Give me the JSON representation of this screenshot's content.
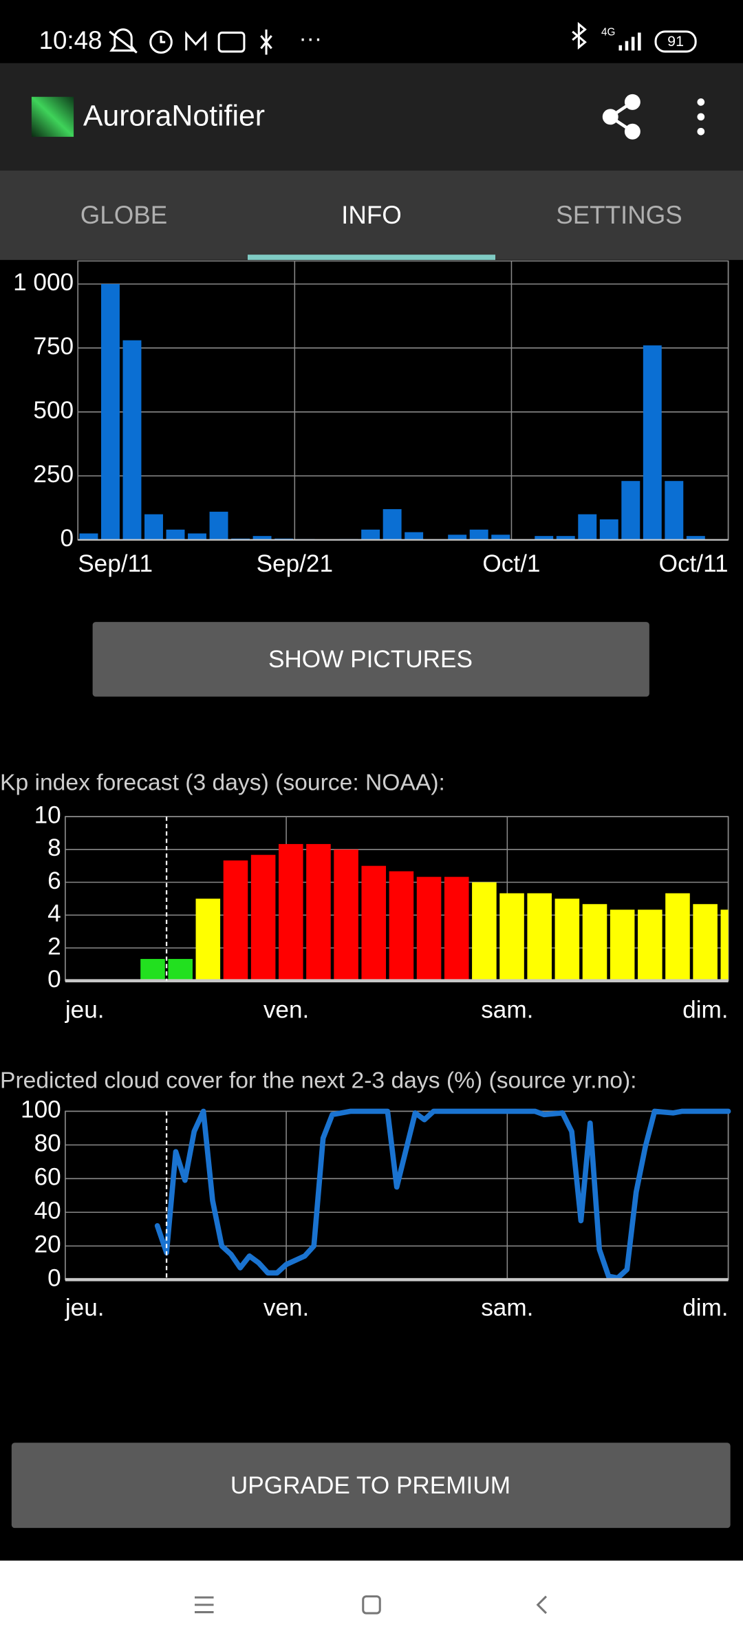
{
  "status_bar": {
    "time": "10:48",
    "network": "4G",
    "battery": "91"
  },
  "app_bar": {
    "title": "AuroraNotifier"
  },
  "tabs": [
    {
      "label": "GLOBE",
      "selected": false
    },
    {
      "label": "INFO",
      "selected": true
    },
    {
      "label": "SETTINGS",
      "selected": false
    }
  ],
  "charts": [
    {
      "type": "bar",
      "color": "#0b6fd3",
      "x": [
        0,
        1,
        2,
        3,
        4,
        5,
        6,
        7,
        8,
        9,
        10,
        11,
        12,
        13,
        14,
        15,
        16,
        17,
        18,
        19,
        20,
        21,
        22,
        23,
        24,
        25,
        26,
        27,
        28,
        29
      ],
      "values": [
        25,
        1000,
        780,
        100,
        40,
        25,
        110,
        5,
        15,
        5,
        3,
        2,
        3,
        40,
        120,
        30,
        0,
        20,
        40,
        20,
        0,
        15,
        15,
        100,
        80,
        230,
        760,
        230,
        15,
        0
      ],
      "xlim": [
        0,
        30
      ],
      "xticks": [
        {
          "value": 0,
          "label": "Sep/11"
        },
        {
          "value": 10,
          "label": "Sep/21"
        },
        {
          "value": 20,
          "label": "Oct/1"
        },
        {
          "value": 30,
          "label": "Oct/11"
        }
      ],
      "ylim": [
        0,
        1090
      ],
      "yticks": [
        0,
        250,
        500,
        750,
        {
          "value": 1000,
          "label": "1 000"
        }
      ],
      "grid": true
    },
    {
      "type": "bar",
      "title": "Kp index forecast (3 days) (source: NOAA):",
      "x": [
        8,
        11,
        14,
        17,
        20,
        23,
        26,
        29,
        32,
        35,
        38,
        41,
        44,
        47,
        50,
        53,
        56,
        59,
        62,
        65,
        68,
        71
      ],
      "values": [
        1.33,
        1.33,
        5,
        7.33,
        7.67,
        8.33,
        8.33,
        8,
        7,
        6.67,
        6.33,
        6.33,
        6,
        5.33,
        5.33,
        5,
        4.67,
        4.33,
        4.33,
        5.33,
        4.67,
        4.33
      ],
      "colors": [
        "#22e01f",
        "#22e01f",
        "#ffff00",
        "#ff0000",
        "#ff0000",
        "#ff0000",
        "#ff0000",
        "#ff0000",
        "#ff0000",
        "#ff0000",
        "#ff0000",
        "#ff0000",
        "#ffff00",
        "#ffff00",
        "#ffff00",
        "#ffff00",
        "#ffff00",
        "#ffff00",
        "#ffff00",
        "#ffff00",
        "#ffff00",
        "#ffff00"
      ],
      "now": 11,
      "xlim": [
        0,
        72
      ],
      "xticks": [
        {
          "value": 0,
          "label": "jeu."
        },
        {
          "value": 24,
          "label": "ven."
        },
        {
          "value": 48,
          "label": "sam."
        },
        {
          "value": 72,
          "label": "dim."
        }
      ],
      "ylim": [
        0,
        10
      ],
      "yticks": [
        0,
        2,
        4,
        6,
        8,
        10
      ],
      "grid": true
    },
    {
      "type": "line",
      "title": "Predicted cloud cover for the next 2-3 days (%) (source yr.no):",
      "color": "#1a73d0",
      "x": [
        10,
        11,
        12,
        13,
        14,
        15,
        16,
        17,
        18,
        19,
        20,
        21,
        22,
        23,
        24,
        26,
        27,
        28,
        29,
        31,
        35,
        36,
        38,
        39,
        40,
        51,
        52,
        54,
        55,
        56,
        57,
        58,
        59,
        60,
        61,
        62,
        63,
        64,
        66,
        67,
        72
      ],
      "values": [
        32,
        16,
        76,
        59,
        88,
        100,
        47,
        20,
        15,
        7,
        14,
        10,
        4,
        4,
        9,
        14,
        20,
        84,
        98,
        100,
        100,
        55,
        99,
        95,
        100,
        100,
        98,
        99,
        88,
        35,
        93,
        18,
        2,
        1,
        6,
        52,
        79,
        100,
        99,
        100,
        100
      ],
      "now": 11,
      "xlim": [
        0,
        72
      ],
      "xticks": [
        {
          "value": 0,
          "label": "jeu."
        },
        {
          "value": 24,
          "label": "ven."
        },
        {
          "value": 48,
          "label": "sam."
        },
        {
          "value": 72,
          "label": "dim."
        }
      ],
      "ylim": [
        0,
        100
      ],
      "yticks": [
        0,
        20,
        40,
        60,
        80,
        100
      ],
      "grid": true
    }
  ],
  "buttons": {
    "show_pictures": "SHOW PICTURES",
    "upgrade": "UPGRADE TO PREMIUM"
  }
}
